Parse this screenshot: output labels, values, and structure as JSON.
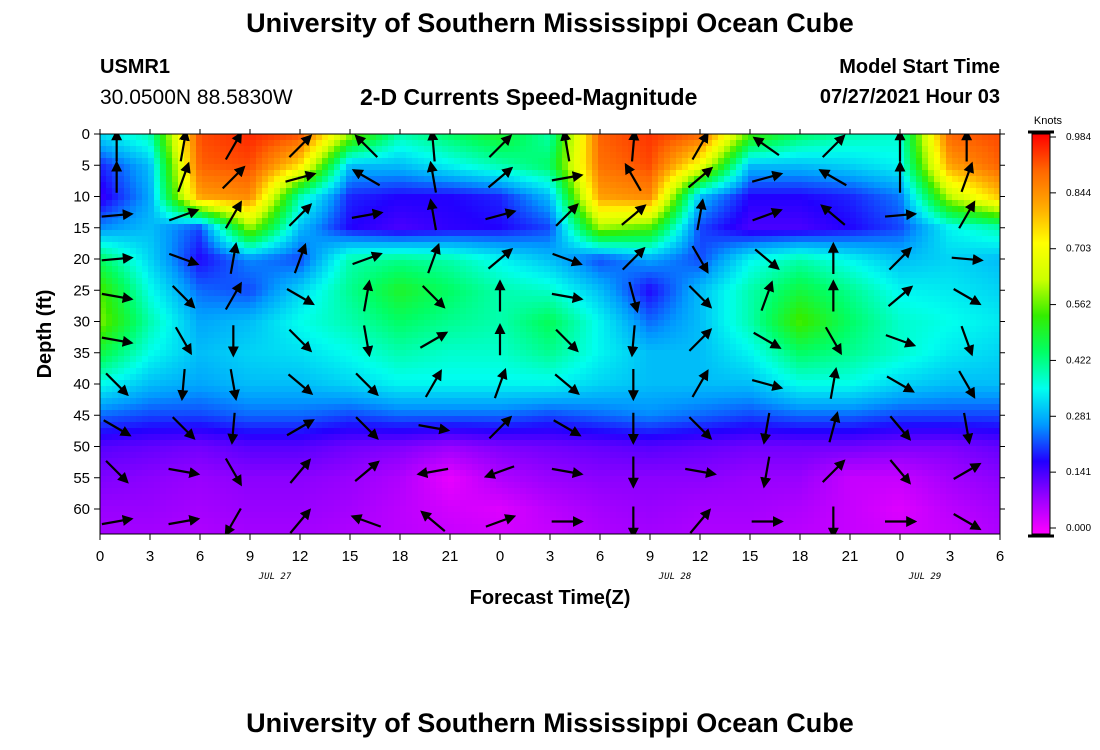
{
  "header": {
    "title": "University of Southern Mississippi Ocean Cube",
    "station_id": "USMR1",
    "station_location": "30.0500N  88.5830W",
    "plot_title": "2-D Currents Speed-Magnitude",
    "model_start_label": "Model Start Time",
    "model_start_value": "07/27/2021 Hour 03"
  },
  "footer": {
    "title": "University of Southern Mississippi Ocean Cube"
  },
  "chart_data": {
    "type": "heatmap",
    "title": "2-D Currents Speed-Magnitude",
    "xlabel": "Forecast Time(Z)",
    "ylabel": "Depth (ft)",
    "x_tick_labels": [
      "0",
      "3",
      "6",
      "9",
      "12",
      "15",
      "18",
      "21",
      "0",
      "3",
      "6",
      "9",
      "12",
      "15",
      "18",
      "21",
      "0",
      "3",
      "6"
    ],
    "x_date_labels": [
      {
        "label": "JUL 27",
        "at_tick": 3.5
      },
      {
        "label": "JUL 28",
        "at_tick": 11.5
      },
      {
        "label": "JUL 29",
        "at_tick": 16.5
      }
    ],
    "y_tick_labels": [
      "0",
      "5",
      "10",
      "15",
      "20",
      "25",
      "30",
      "35",
      "40",
      "45",
      "50",
      "55",
      "60"
    ],
    "y_ticks": [
      0,
      5,
      10,
      15,
      20,
      25,
      30,
      35,
      40,
      45,
      50,
      55,
      60
    ],
    "ylim": [
      0,
      64
    ],
    "x_hours_range": [
      0,
      54
    ],
    "colorbar": {
      "unit": "Knots",
      "tick_labels": [
        "0.984",
        "0.844",
        "0.703",
        "0.562",
        "0.422",
        "0.281",
        "0.141",
        "0.000"
      ],
      "range": [
        0,
        0.984
      ],
      "colors": [
        "#ff00ff",
        "#9900ff",
        "#2200ff",
        "#0099ff",
        "#00ffee",
        "#00ff66",
        "#33ee00",
        "#ccff00",
        "#ffff00",
        "#ffaa00",
        "#ff6600",
        "#ff0000"
      ]
    },
    "speed_grid": {
      "hours": [
        0,
        3,
        6,
        9,
        12,
        15,
        18,
        21,
        24,
        27,
        30,
        33,
        36,
        39,
        42,
        45,
        48,
        51,
        54
      ],
      "depths": [
        0,
        5,
        10,
        15,
        20,
        25,
        30,
        35,
        40,
        45,
        50,
        55,
        60,
        64
      ],
      "values": [
        [
          0.33,
          0.4,
          0.92,
          0.95,
          0.92,
          0.6,
          0.4,
          0.45,
          0.5,
          0.4,
          0.9,
          0.94,
          0.9,
          0.55,
          0.45,
          0.4,
          0.38,
          0.9,
          0.92
        ],
        [
          0.2,
          0.3,
          0.9,
          0.92,
          0.75,
          0.3,
          0.3,
          0.35,
          0.4,
          0.45,
          0.88,
          0.92,
          0.7,
          0.3,
          0.3,
          0.32,
          0.35,
          0.82,
          0.9
        ],
        [
          0.16,
          0.28,
          0.82,
          0.85,
          0.4,
          0.2,
          0.18,
          0.18,
          0.2,
          0.3,
          0.82,
          0.85,
          0.3,
          0.18,
          0.18,
          0.2,
          0.25,
          0.62,
          0.78
        ],
        [
          0.26,
          0.3,
          0.22,
          0.6,
          0.3,
          0.18,
          0.15,
          0.17,
          0.18,
          0.22,
          0.6,
          0.55,
          0.22,
          0.15,
          0.15,
          0.18,
          0.22,
          0.35,
          0.4
        ],
        [
          0.45,
          0.32,
          0.18,
          0.26,
          0.22,
          0.4,
          0.42,
          0.4,
          0.35,
          0.3,
          0.22,
          0.28,
          0.22,
          0.35,
          0.4,
          0.35,
          0.3,
          0.32,
          0.3
        ],
        [
          0.55,
          0.36,
          0.24,
          0.22,
          0.32,
          0.42,
          0.5,
          0.45,
          0.4,
          0.38,
          0.3,
          0.18,
          0.3,
          0.4,
          0.48,
          0.42,
          0.35,
          0.34,
          0.32
        ],
        [
          0.58,
          0.4,
          0.28,
          0.3,
          0.36,
          0.4,
          0.45,
          0.42,
          0.4,
          0.46,
          0.35,
          0.24,
          0.3,
          0.4,
          0.55,
          0.45,
          0.38,
          0.36,
          0.34
        ],
        [
          0.48,
          0.36,
          0.3,
          0.32,
          0.33,
          0.36,
          0.4,
          0.38,
          0.38,
          0.42,
          0.35,
          0.3,
          0.3,
          0.35,
          0.45,
          0.42,
          0.38,
          0.34,
          0.32
        ],
        [
          0.36,
          0.3,
          0.28,
          0.3,
          0.3,
          0.32,
          0.35,
          0.35,
          0.35,
          0.35,
          0.32,
          0.3,
          0.3,
          0.3,
          0.36,
          0.36,
          0.32,
          0.3,
          0.3
        ],
        [
          0.24,
          0.22,
          0.22,
          0.24,
          0.24,
          0.22,
          0.24,
          0.24,
          0.24,
          0.22,
          0.24,
          0.26,
          0.24,
          0.22,
          0.24,
          0.24,
          0.22,
          0.22,
          0.22
        ],
        [
          0.14,
          0.13,
          0.12,
          0.14,
          0.14,
          0.12,
          0.11,
          0.09,
          0.11,
          0.12,
          0.13,
          0.14,
          0.13,
          0.12,
          0.12,
          0.12,
          0.11,
          0.11,
          0.13
        ],
        [
          0.11,
          0.1,
          0.09,
          0.1,
          0.1,
          0.09,
          0.07,
          0.02,
          0.07,
          0.09,
          0.1,
          0.1,
          0.1,
          0.09,
          0.09,
          0.05,
          0.05,
          0.08,
          0.1
        ],
        [
          0.09,
          0.09,
          0.08,
          0.09,
          0.09,
          0.08,
          0.06,
          0.04,
          0.03,
          0.06,
          0.08,
          0.09,
          0.08,
          0.08,
          0.07,
          0.05,
          0.03,
          0.06,
          0.08
        ],
        [
          0.08,
          0.08,
          0.07,
          0.08,
          0.08,
          0.07,
          0.06,
          0.05,
          0.04,
          0.05,
          0.07,
          0.08,
          0.07,
          0.07,
          0.06,
          0.05,
          0.04,
          0.05,
          0.07
        ]
      ]
    },
    "vectors": {
      "hours": [
        1,
        5,
        8,
        12,
        16,
        20,
        24,
        28,
        32,
        36,
        40,
        44,
        48,
        52
      ],
      "depths": [
        2,
        7,
        13,
        20,
        26,
        33,
        40,
        47,
        54,
        62
      ],
      "angles_deg": [
        [
          90,
          80,
          60,
          45,
          135,
          95,
          45,
          100,
          85,
          60,
          145,
          45,
          90,
          90
        ],
        [
          90,
          70,
          45,
          15,
          150,
          100,
          40,
          10,
          120,
          40,
          15,
          150,
          90,
          70
        ],
        [
          5,
          20,
          60,
          45,
          10,
          100,
          15,
          45,
          40,
          80,
          20,
          140,
          5,
          60
        ],
        [
          5,
          -20,
          80,
          70,
          20,
          70,
          40,
          -20,
          45,
          -60,
          -40,
          90,
          45,
          -5
        ],
        [
          -10,
          -45,
          60,
          -30,
          80,
          -45,
          90,
          -10,
          -75,
          -45,
          70,
          90,
          40,
          -30
        ],
        [
          -10,
          -60,
          -90,
          -45,
          -80,
          30,
          90,
          -45,
          -95,
          45,
          -30,
          -60,
          -20,
          -70
        ],
        [
          -45,
          -95,
          -80,
          -40,
          -45,
          60,
          70,
          -40,
          -90,
          60,
          -15,
          80,
          -30,
          -60
        ],
        [
          -30,
          -45,
          -95,
          30,
          -45,
          -10,
          45,
          -30,
          -90,
          -45,
          -100,
          75,
          -50,
          -80
        ],
        [
          -45,
          -10,
          -60,
          50,
          40,
          -170,
          -160,
          -10,
          -90,
          -10,
          -100,
          45,
          -50,
          30
        ],
        [
          10,
          10,
          -120,
          50,
          160,
          140,
          20,
          0,
          -90,
          50,
          0,
          -90,
          0,
          -30
        ]
      ]
    }
  }
}
